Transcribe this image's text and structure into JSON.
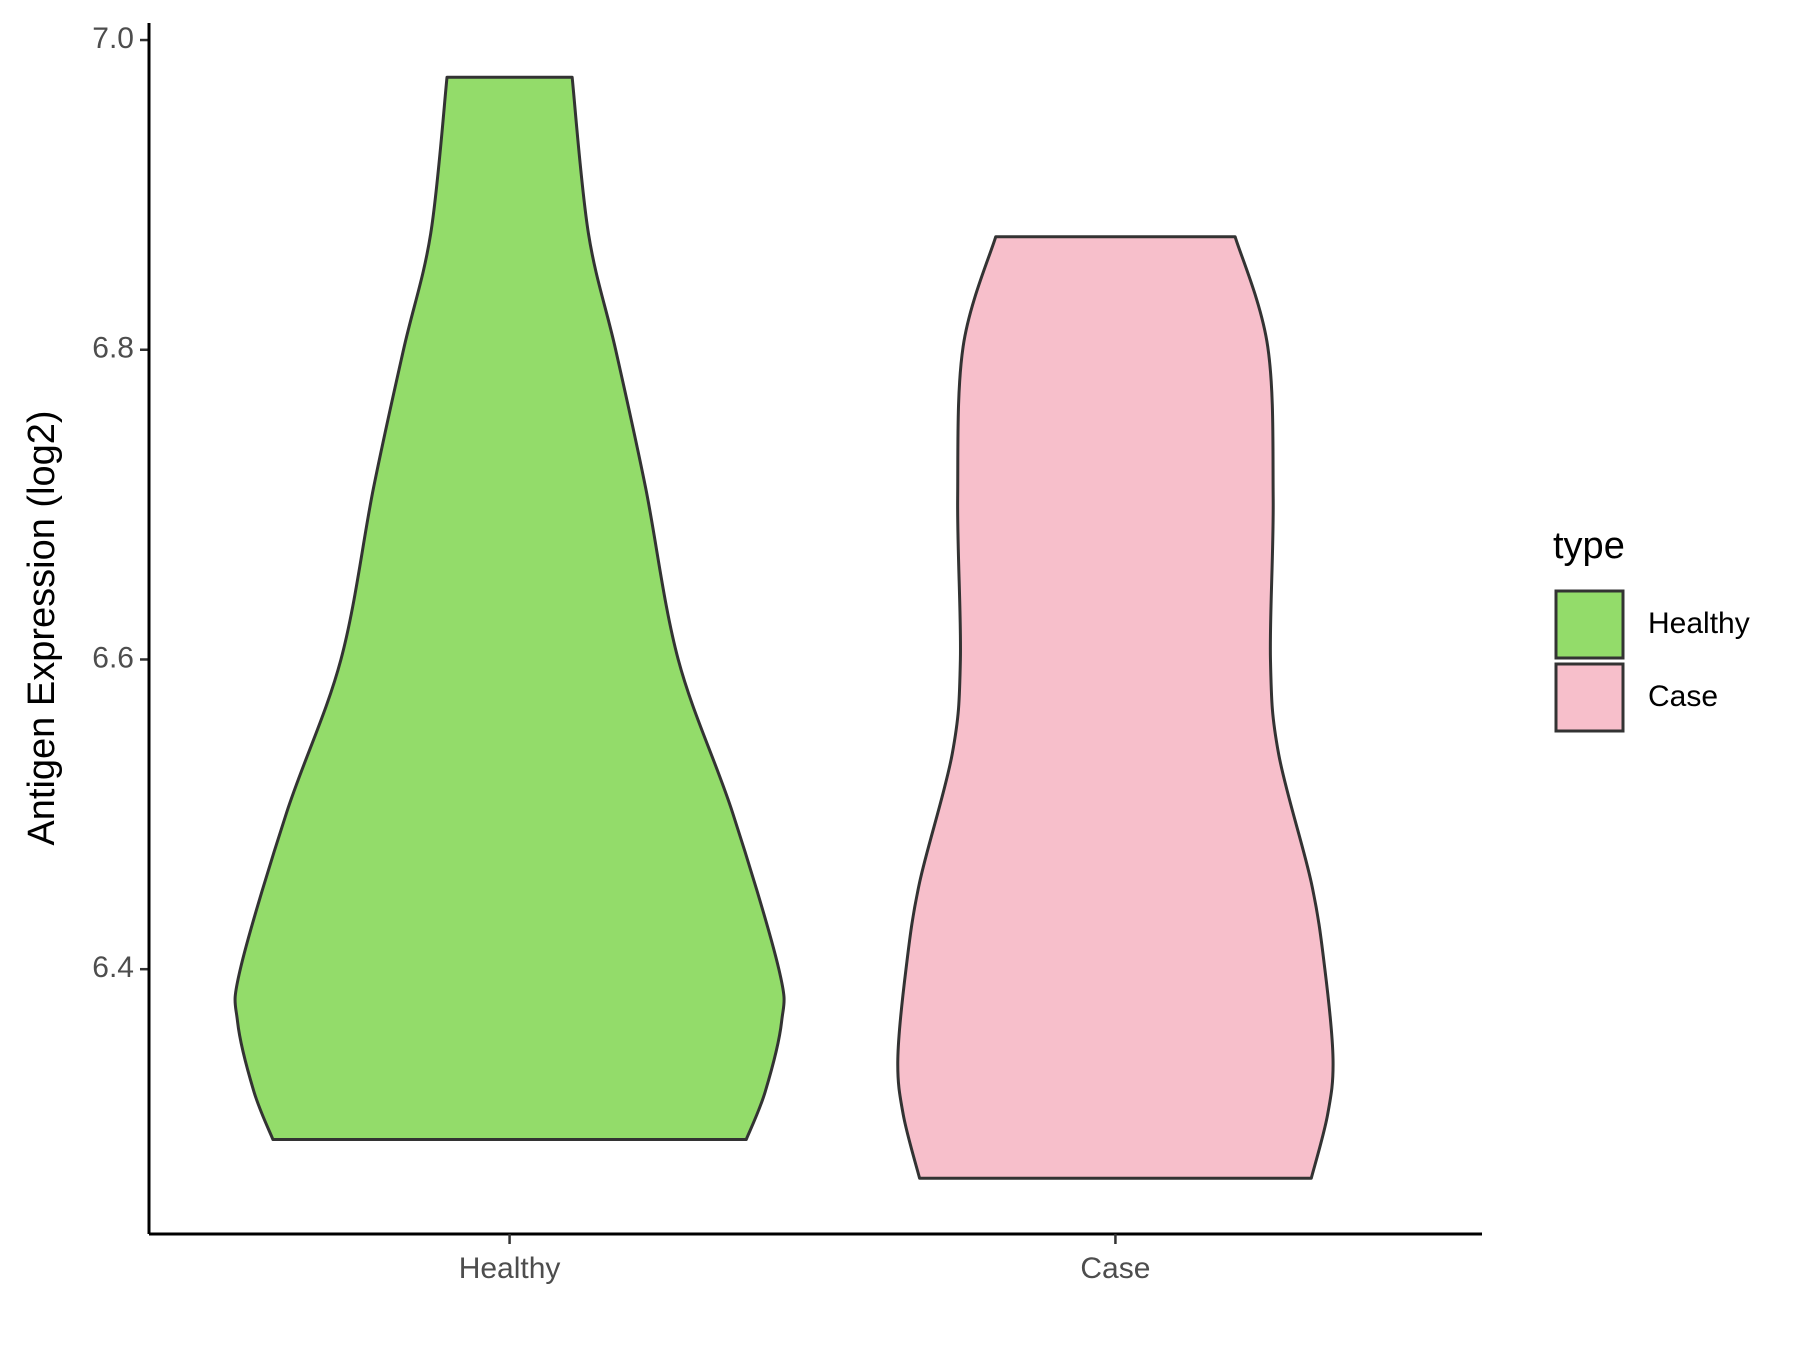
{
  "chart_data": {
    "type": "violin",
    "y_label": "Antigen Expression (log2)",
    "categories": [
      "Healthy",
      "Case"
    ],
    "series": [
      {
        "name": "Healthy",
        "color": "#93dc6a",
        "y": [
          6.976,
          6.875,
          6.8,
          6.711,
          6.6,
          6.501,
          6.4,
          6.366,
          6.321,
          6.29
        ],
        "density": [
          0.23,
          0.29,
          0.39,
          0.5,
          0.62,
          0.82,
          0.99,
          1.0,
          0.94,
          0.87
        ]
      },
      {
        "name": "Case",
        "color": "#f7bfcb",
        "y": [
          6.873,
          6.802,
          6.704,
          6.6,
          6.539,
          6.456,
          6.4,
          6.342,
          6.306,
          6.265
        ],
        "density": [
          0.44,
          0.56,
          0.58,
          0.57,
          0.6,
          0.72,
          0.77,
          0.8,
          0.78,
          0.72
        ]
      }
    ],
    "ylim": [
      6.229,
      7.011
    ],
    "yticks": [
      {
        "value": 6.4,
        "label": "6.4"
      },
      {
        "value": 6.6,
        "label": "6.6"
      },
      {
        "value": 6.8,
        "label": "6.8"
      },
      {
        "value": 7.0,
        "label": "7.0"
      }
    ],
    "legend_title": "type",
    "legend_position": "right"
  }
}
